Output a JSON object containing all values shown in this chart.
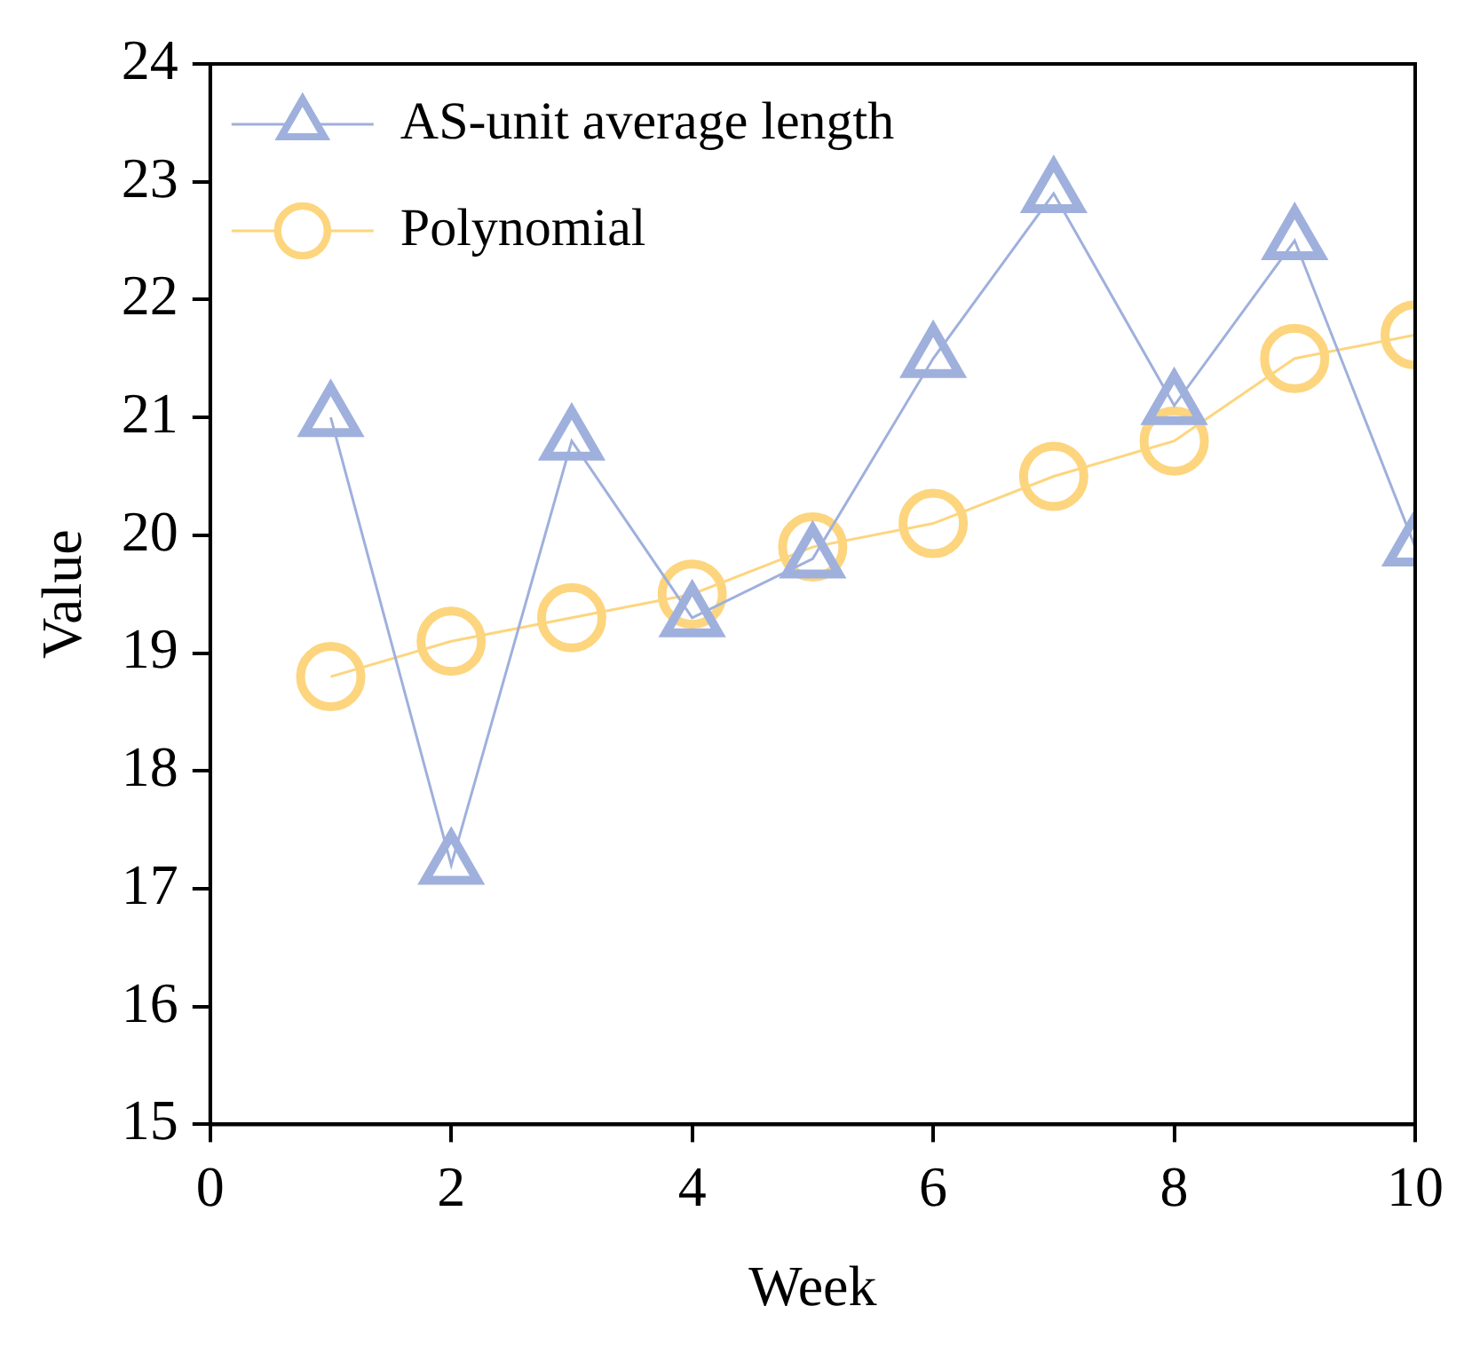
{
  "chart_data": {
    "type": "line",
    "xlabel": "Week",
    "ylabel": "Value",
    "x": [
      1,
      2,
      3,
      4,
      5,
      6,
      7,
      8,
      9,
      10
    ],
    "series": [
      {
        "name": "AS-unit average length",
        "color": "#9fb0dc",
        "marker": "triangle",
        "values": [
          21.0,
          17.2,
          20.8,
          19.3,
          19.8,
          21.5,
          22.9,
          21.1,
          22.5,
          19.9
        ]
      },
      {
        "name": "Polynomial",
        "color": "#fdd57e",
        "marker": "circle",
        "values": [
          18.8,
          19.1,
          19.3,
          19.5,
          19.9,
          20.1,
          20.5,
          20.8,
          21.5,
          21.7
        ]
      }
    ],
    "xlim": [
      0,
      10
    ],
    "xticks": [
      0,
      2,
      4,
      6,
      8,
      10
    ],
    "ylim": [
      15,
      24
    ],
    "yticks": [
      15,
      16,
      17,
      18,
      19,
      20,
      21,
      22,
      23,
      24
    ],
    "grid": false,
    "legend": "top left"
  }
}
